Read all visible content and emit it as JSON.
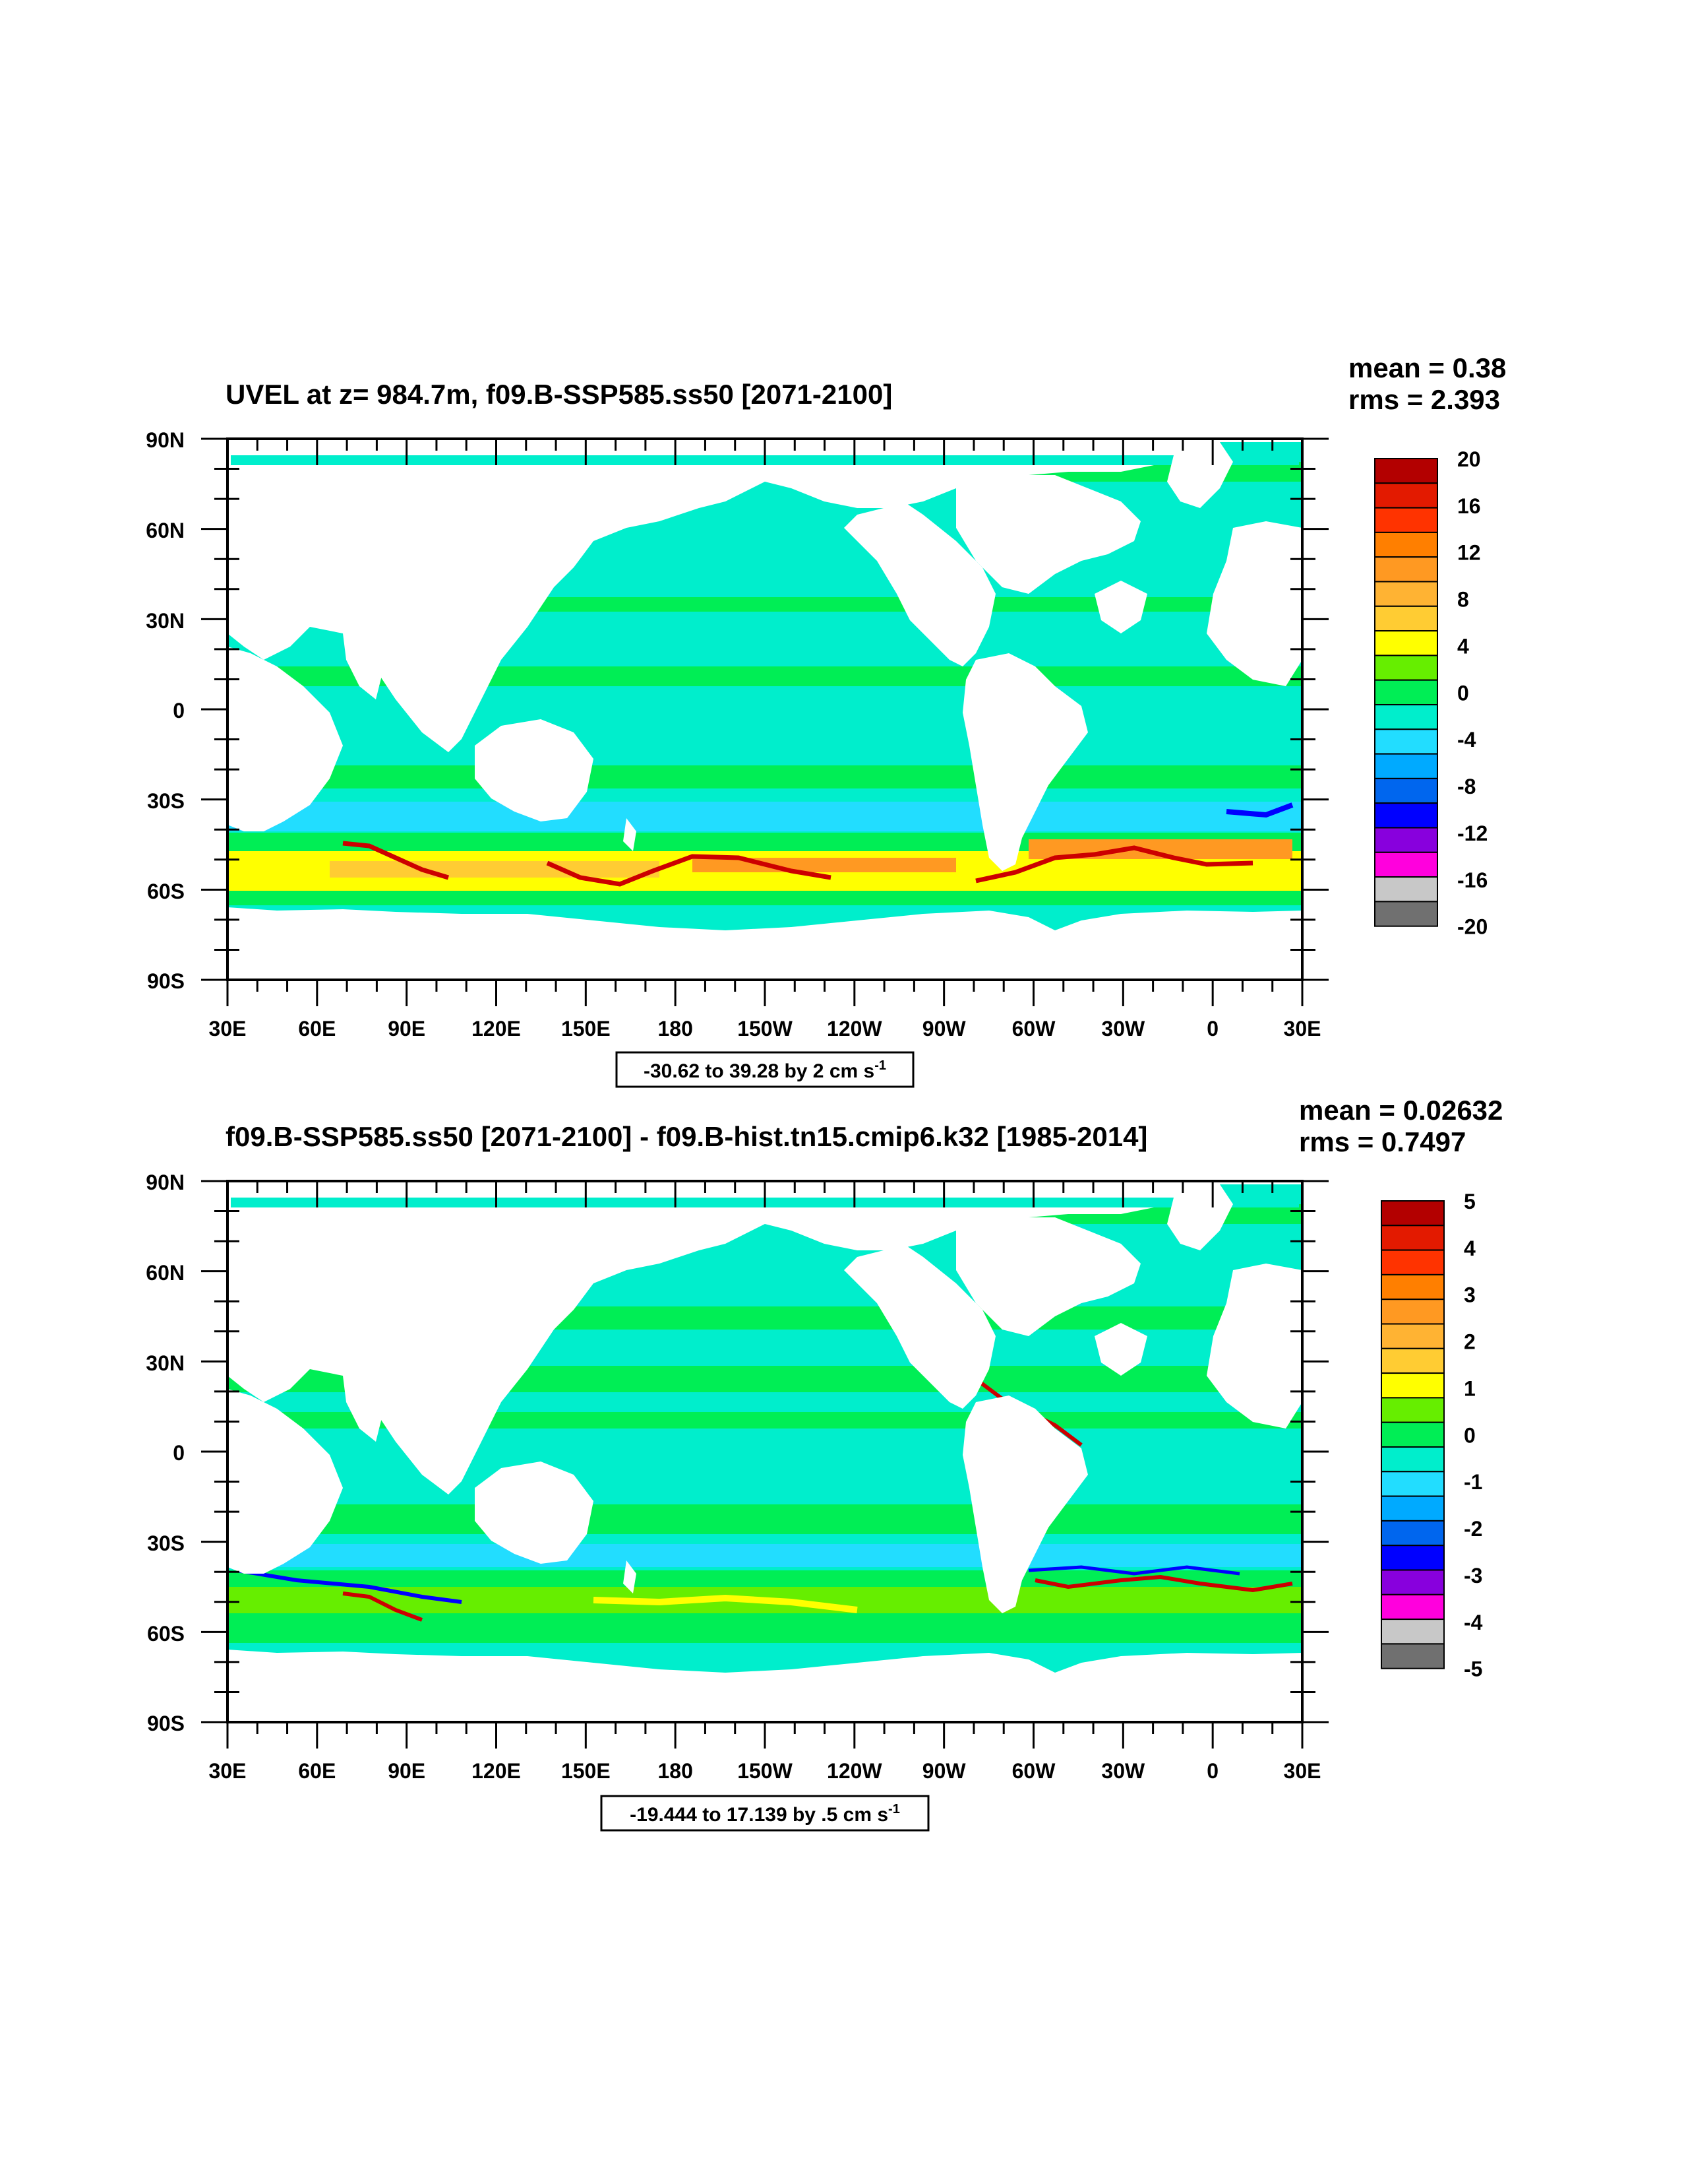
{
  "panels": [
    {
      "title": "UVEL at z= 984.7m, f09.B-SSP585.ss50 [2071-2100]",
      "mean": "mean = 0.38",
      "rms": "rms = 2.393",
      "colorbar_labels": [
        "20",
        "16",
        "12",
        "8",
        "4",
        "0",
        "-4",
        "-8",
        "-12",
        "-16",
        "-20"
      ],
      "range_text": "-30.62 to 39.28 by 2 cm s",
      "range_sup": "-1"
    },
    {
      "title": "f09.B-SSP585.ss50 [2071-2100] - f09.B-hist.tn15.cmip6.k32 [1985-2014]",
      "mean": "mean = 0.02632",
      "rms": "rms = 0.7497",
      "colorbar_labels": [
        "5",
        "4",
        "3",
        "2",
        "1",
        "0",
        "-1",
        "-2",
        "-3",
        "-4",
        "-5"
      ],
      "range_text": "-19.444 to 17.139 by .5 cm s",
      "range_sup": "-1"
    }
  ],
  "lat_labels": [
    "90N",
    "60N",
    "30N",
    "0",
    "30S",
    "60S",
    "90S"
  ],
  "lon_labels": [
    "30E",
    "60E",
    "90E",
    "120E",
    "150E",
    "180",
    "150W",
    "120W",
    "90W",
    "60W",
    "30W",
    "0",
    "30E"
  ],
  "colorbar_colors": [
    "#b30000",
    "#e31a00",
    "#ff3300",
    "#ff7f00",
    "#ff9922",
    "#ffb333",
    "#ffcc33",
    "#ffff00",
    "#66ee00",
    "#00ee55",
    "#00eecc",
    "#22ddff",
    "#00aaff",
    "#0066ee",
    "#0000ff",
    "#8800dd",
    "#ff00dd",
    "#c8c8c8",
    "#707070"
  ],
  "ocean_colors": {
    "base": "#00eecc",
    "green": "#00ee55",
    "cyan": "#22ddff",
    "yellow": "#ffff00",
    "orange": "#ff9922",
    "red": "#cc0000",
    "blue": "#0000ff",
    "lightgreen": "#66ee00"
  }
}
